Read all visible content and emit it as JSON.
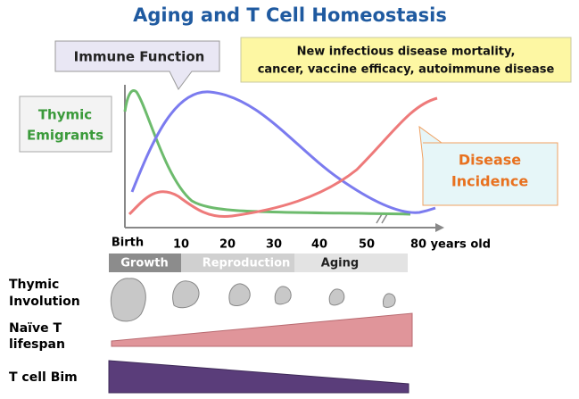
{
  "title": "Aging and T Cell Homeostasis",
  "callouts": {
    "immune_function": "Immune Function",
    "mortality": [
      "New infectious disease mortality,",
      "cancer, vaccine efficacy, autoimmune disease"
    ],
    "thymic_emigrants": [
      "Thymic",
      "Emigrants"
    ],
    "disease_incidence": [
      "Disease",
      "Incidence"
    ]
  },
  "x_axis": [
    "Birth",
    "10",
    "20",
    "30",
    "40",
    "50",
    "80 years old"
  ],
  "phases": [
    "Growth",
    "Reproduction",
    "Aging"
  ],
  "rows": {
    "thymic_involution": [
      "Thymic",
      "Involution"
    ],
    "naive_t_lifespan": [
      "Naïve T",
      "lifespan"
    ],
    "t_cell_bim": "T cell Bim"
  }
}
